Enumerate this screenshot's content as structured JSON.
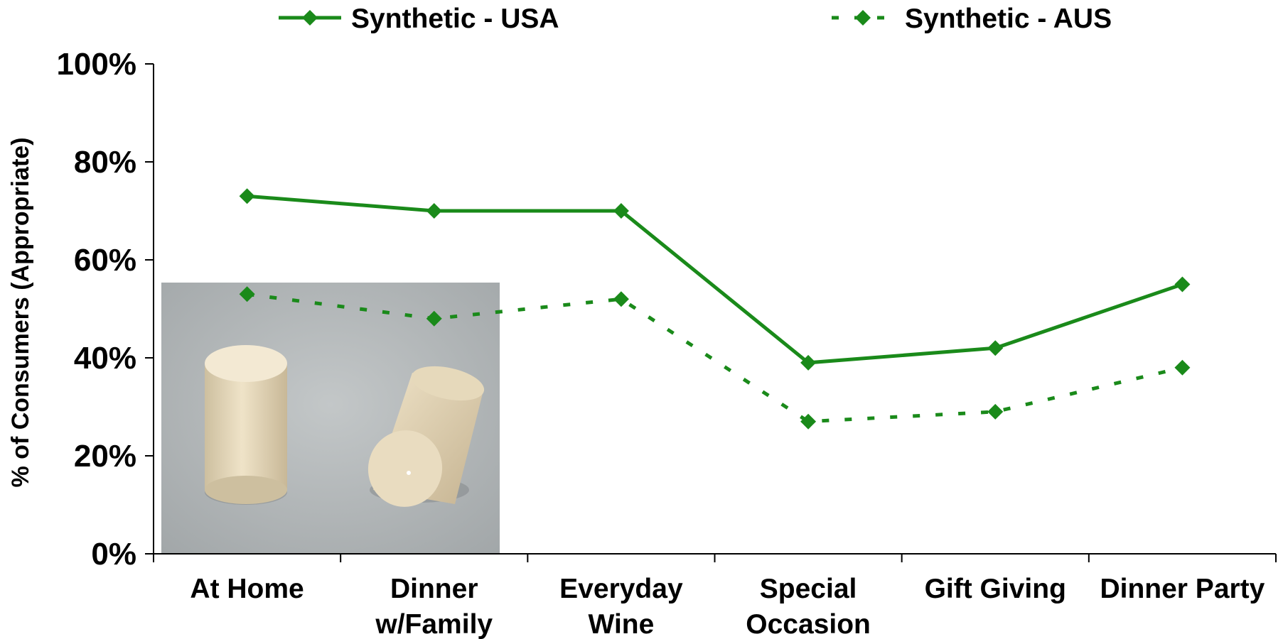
{
  "chart_data": {
    "type": "line",
    "title": "",
    "xlabel": "",
    "ylabel": "% of Consumers (Appropriate)",
    "categories": [
      [
        "At Home"
      ],
      [
        "Dinner",
        "w/Family"
      ],
      [
        "Everyday",
        "Wine"
      ],
      [
        "Special",
        "Occasion"
      ],
      [
        "Gift Giving"
      ],
      [
        "Dinner Party"
      ]
    ],
    "series": [
      {
        "name": "Synthetic - USA",
        "values": [
          73,
          70,
          70,
          39,
          42,
          55
        ],
        "color": "#1a8a1a",
        "line_style": "solid",
        "marker": "diamond"
      },
      {
        "name": "Synthetic - AUS",
        "values": [
          53,
          48,
          52,
          27,
          29,
          38
        ],
        "color": "#1a8a1a",
        "line_style": "dashed",
        "marker": "diamond"
      }
    ],
    "yticks": [
      "0%",
      "20%",
      "40%",
      "60%",
      "80%",
      "100%"
    ],
    "ylim": [
      0,
      100
    ],
    "grid": false,
    "legend_position": "top"
  },
  "inset_image": {
    "description_icon": "synthetic-cork-photo-icon"
  }
}
